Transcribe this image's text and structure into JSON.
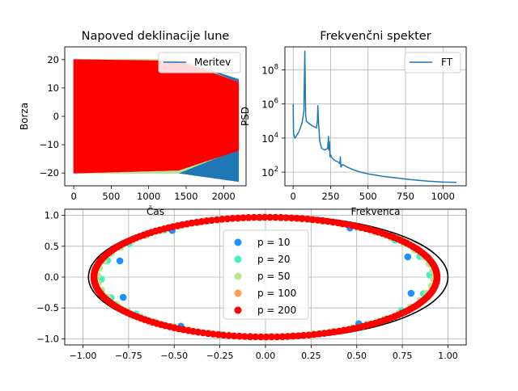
{
  "chart_data": [
    {
      "type": "line",
      "title": "Napoved deklinacije lune",
      "xlabel": "Čas",
      "ylabel": "Borza",
      "xlim": [
        -120,
        2300
      ],
      "ylim": [
        -24.5,
        24.5
      ],
      "xticks": [
        "0",
        "500",
        "1000",
        "1500",
        "2000"
      ],
      "xtick_values": [
        0,
        500,
        1000,
        1500,
        2000
      ],
      "yticks": [
        "20",
        "10",
        "0",
        "−10",
        "−20"
      ],
      "ytick_values": [
        20,
        10,
        0,
        -10,
        -20
      ],
      "grid": false,
      "legend": {
        "position": "top-right",
        "entries": [
          "Meritev"
        ]
      },
      "series": [
        {
          "name": "Meritev",
          "color": "#1f77b4",
          "envelope": {
            "x": [
              0,
              1400,
              2200
            ],
            "upper": [
              20,
              20,
              13
            ],
            "lower": [
              -20,
              -20,
              -23
            ]
          }
        },
        {
          "color": "#b3e890",
          "envelope": {
            "x": [
              0,
              1400,
              2200
            ],
            "upper": [
              20,
              20,
              12
            ],
            "lower": [
              -20,
              -20,
              -11.5
            ]
          }
        },
        {
          "color": "#ff0000",
          "envelope": {
            "x": [
              0,
              1400,
              2200
            ],
            "upper": [
              20,
              19.5,
              12
            ],
            "lower": [
              -20,
              -19,
              -12
            ]
          }
        }
      ]
    },
    {
      "type": "line",
      "title": "Frekvenčni spekter",
      "xlabel": "Frekvenca",
      "ylabel": "PSD",
      "yscale": "log",
      "xlim": [
        -55,
        1155
      ],
      "ylim_log10": [
        1.2,
        9.35
      ],
      "xticks": [
        "0",
        "250",
        "500",
        "750",
        "1000"
      ],
      "xtick_values": [
        0,
        250,
        500,
        750,
        1000
      ],
      "yticks": [
        "10^8",
        "10^6",
        "10^4",
        "10^2"
      ],
      "ytick_log10": [
        8,
        6,
        4,
        2
      ],
      "grid": true,
      "legend": {
        "position": "top-right",
        "entries": [
          "FT"
        ]
      },
      "series": [
        {
          "name": "FT",
          "color": "#1f77b4",
          "x": [
            0,
            3,
            8,
            12,
            20,
            40,
            60,
            72,
            78,
            82,
            84,
            88,
            100,
            130,
            155,
            162,
            165,
            170,
            178,
            190,
            210,
            230,
            236,
            238,
            242,
            246,
            250,
            262,
            275,
            300,
            312,
            315,
            318,
            330,
            360,
            400,
            450,
            500,
            600,
            700,
            800,
            900,
            1000,
            1090
          ],
          "log10_y": [
            6,
            4.3,
            4.1,
            4.0,
            4.1,
            4.4,
            4.9,
            5.6,
            9.1,
            6.2,
            5.3,
            5.0,
            4.9,
            4.7,
            4.6,
            5.0,
            5.9,
            4.8,
            3.8,
            3.4,
            3.3,
            3.4,
            4.1,
            3.3,
            3.8,
            2.9,
            3.0,
            2.8,
            2.7,
            2.6,
            2.5,
            2.9,
            2.3,
            2.45,
            2.3,
            2.15,
            2.0,
            1.9,
            1.75,
            1.65,
            1.55,
            1.47,
            1.42,
            1.4
          ]
        }
      ]
    },
    {
      "type": "scatter",
      "xlim": [
        -1.1,
        1.1
      ],
      "ylim": [
        -1.1,
        1.1
      ],
      "xticks": [
        "−1.00",
        "−0.75",
        "−0.50",
        "−0.25",
        "0.00",
        "0.25",
        "0.50",
        "0.75",
        "1.00"
      ],
      "xtick_values": [
        -1,
        -0.75,
        -0.5,
        -0.25,
        0,
        0.25,
        0.5,
        0.75,
        1
      ],
      "yticks": [
        "1.0",
        "0.5",
        "0.0",
        "−0.5",
        "−1.0"
      ],
      "ytick_values": [
        1,
        0.5,
        0,
        -0.5,
        -1
      ],
      "grid": true,
      "legend": {
        "position": "center",
        "entries": [
          "p = 10",
          "p = 20",
          "p = 50",
          "p = 100",
          "p = 200"
        ]
      },
      "reference_curve": {
        "color": "#000000",
        "shape": "ellipse",
        "x_range": [
          -0.97,
          1.0
        ],
        "y_range": [
          -1.0,
          1.0
        ]
      },
      "series": [
        {
          "name": "p = 10",
          "color": "#1e90ff",
          "points": 10,
          "radius_x": 0.83,
          "radius_y": 0.96
        },
        {
          "name": "p = 20",
          "color": "#40f0c8",
          "points": 20,
          "radius_x": 0.9,
          "radius_y": 0.97
        },
        {
          "name": "p = 50",
          "color": "#b3e890",
          "points": 50,
          "radius_x": 0.92,
          "radius_y": 0.96
        },
        {
          "name": "p = 100",
          "color": "#ff9a50",
          "points": 100,
          "radius_x": 0.94,
          "radius_y": 0.97
        },
        {
          "name": "p = 200",
          "color": "#ff0000",
          "points": 200,
          "radius_x": 0.94,
          "radius_y": 0.97
        }
      ]
    }
  ]
}
